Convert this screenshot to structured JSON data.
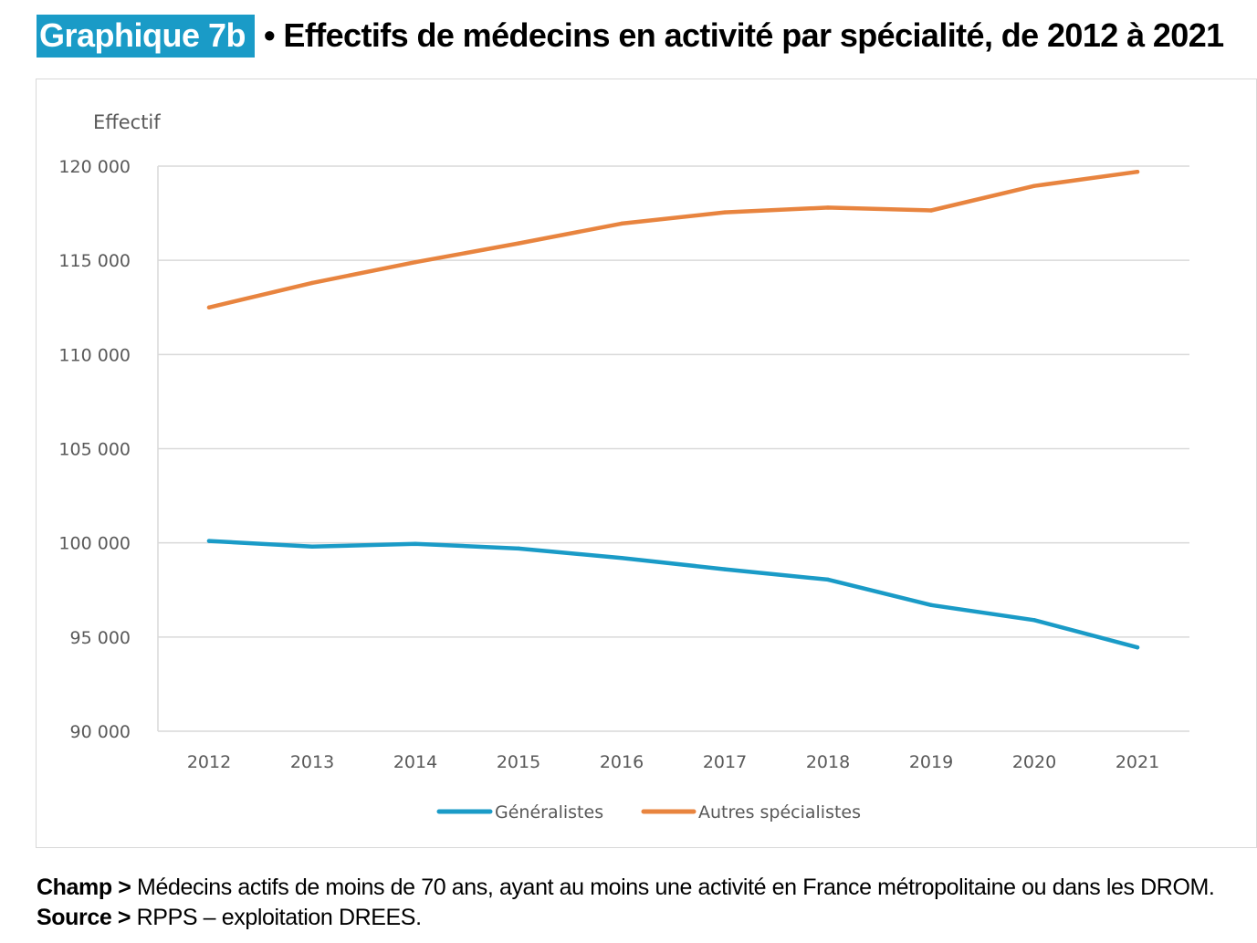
{
  "header": {
    "badge": "Graphique 7b",
    "title": "• Effectifs de médecins en activité par spécialité, de 2012 à 2021"
  },
  "chart_data": {
    "type": "line",
    "ylabel": "Effectif",
    "ylim": [
      90000,
      120000
    ],
    "yticks": [
      90000,
      95000,
      100000,
      105000,
      110000,
      115000,
      120000
    ],
    "ytick_labels": [
      "90 000",
      "95 000",
      "100 000",
      "105 000",
      "110 000",
      "115 000",
      "120 000"
    ],
    "categories": [
      "2012",
      "2013",
      "2014",
      "2015",
      "2016",
      "2017",
      "2018",
      "2019",
      "2020",
      "2021"
    ],
    "grid": "horizontal",
    "legend_position": "bottom",
    "series": [
      {
        "name": "Généralistes",
        "color": "#1a9bc7",
        "values": [
          100100,
          99800,
          99950,
          99700,
          99200,
          98600,
          98050,
          96700,
          95900,
          94450
        ]
      },
      {
        "name": "Autres spécialistes",
        "color": "#e8843f",
        "values": [
          112500,
          113800,
          114900,
          115900,
          116950,
          117550,
          117800,
          117650,
          118950,
          119700
        ]
      }
    ]
  },
  "notes": {
    "champ_label": "Champ >",
    "champ_text": " Médecins actifs de moins de 70 ans, ayant au moins une activité en France métropolitaine ou dans les DROM.",
    "source_label": "Source >",
    "source_text": " RPPS – exploitation DREES."
  }
}
